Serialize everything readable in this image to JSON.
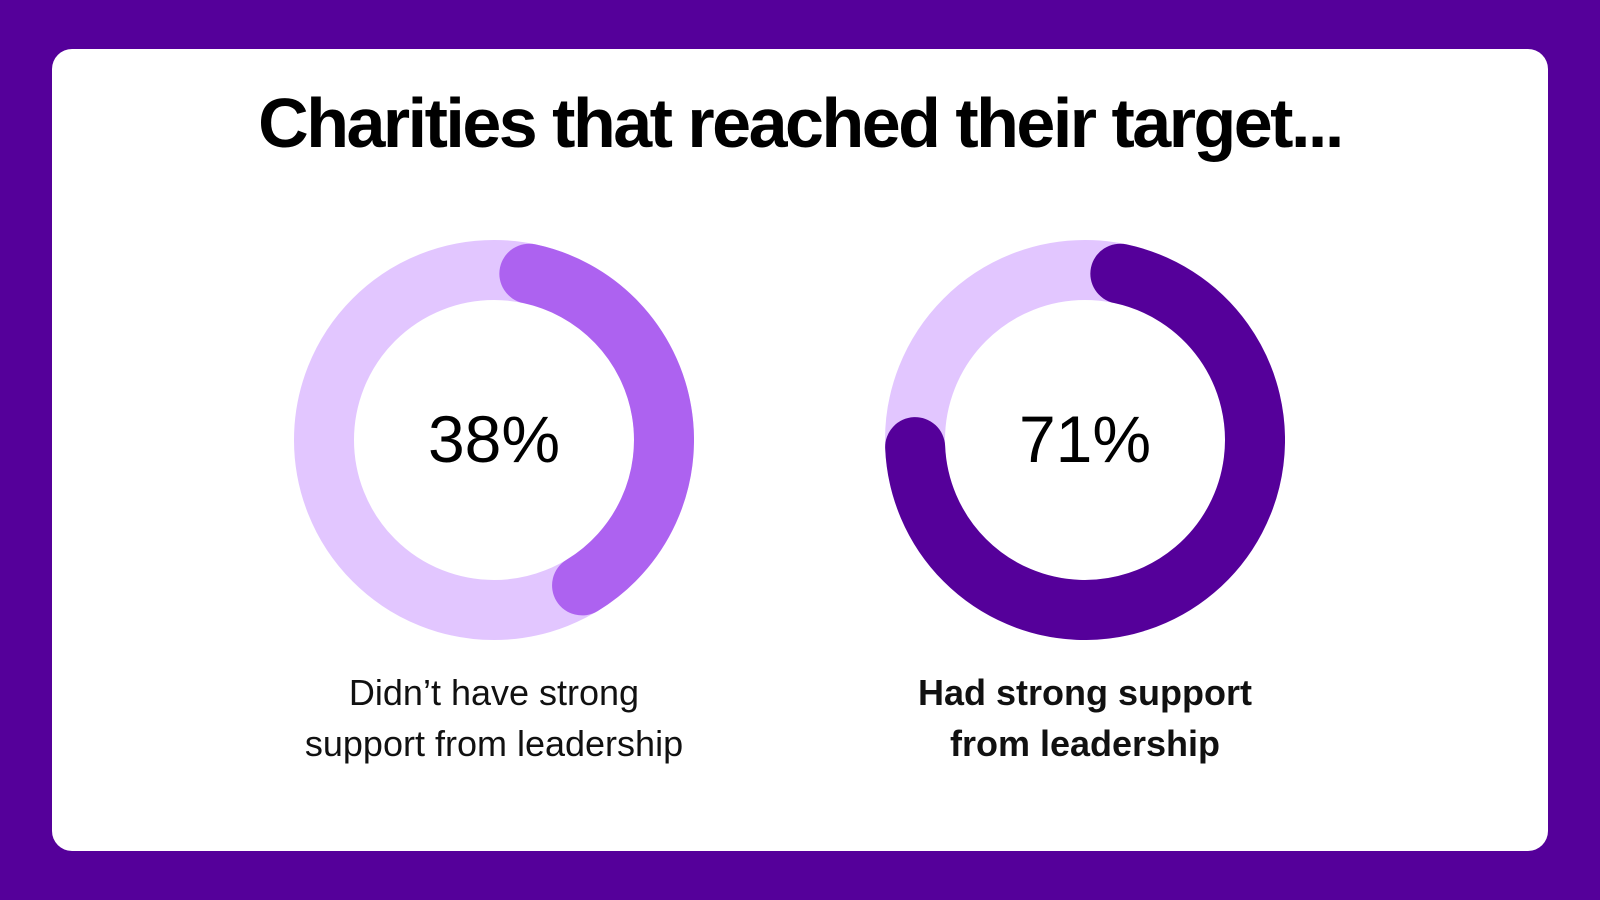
{
  "colors": {
    "background": "#55009a",
    "card": "#ffffff",
    "track": "#e2c6ff"
  },
  "chart_data": [
    {
      "type": "pie",
      "title": "Charities that reached their target...",
      "value": 38,
      "label": "38%",
      "caption": "Didn’t have strong\nsupport from leadership",
      "caption_bold": false,
      "fill_color": "#ad62f0",
      "track_color": "#e2c6ff"
    },
    {
      "type": "pie",
      "title": "Charities that reached their target...",
      "value": 71,
      "label": "71%",
      "caption": "Had strong support\nfrom leadership",
      "caption_bold": true,
      "fill_color": "#55009a",
      "track_color": "#e2c6ff"
    }
  ],
  "title": "Charities that reached their target..."
}
